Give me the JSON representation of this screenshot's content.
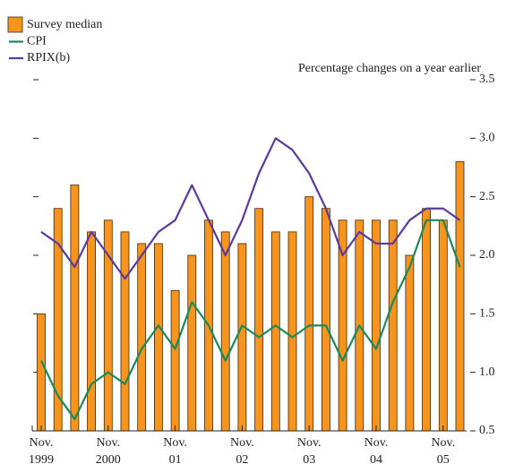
{
  "chart_data": {
    "type": "bar_line",
    "annotation": "Percentage changes on a year earlier",
    "categories": [
      [
        "Nov.",
        "1999"
      ],
      null,
      null,
      null,
      [
        "Nov.",
        "2000"
      ],
      null,
      null,
      null,
      [
        "Nov.",
        "01"
      ],
      null,
      null,
      null,
      [
        "Nov.",
        "02"
      ],
      null,
      null,
      null,
      [
        "Nov.",
        "03"
      ],
      null,
      null,
      null,
      [
        "Nov.",
        "04"
      ],
      null,
      null,
      null,
      [
        "Nov.",
        "05"
      ],
      null
    ],
    "series": [
      {
        "name": "Survey median",
        "kind": "bar",
        "color": "#f7941d",
        "values": [
          1.5,
          2.4,
          2.6,
          2.2,
          2.3,
          2.2,
          2.1,
          2.1,
          1.7,
          2.0,
          2.3,
          2.2,
          2.1,
          2.4,
          2.2,
          2.2,
          2.5,
          2.4,
          2.3,
          2.3,
          2.3,
          2.3,
          2.0,
          2.4,
          2.3,
          2.8
        ]
      },
      {
        "name": "CPI",
        "kind": "line",
        "color": "#1a8a5a",
        "values": [
          1.1,
          0.8,
          0.6,
          0.9,
          1.0,
          0.9,
          1.2,
          1.4,
          1.2,
          1.6,
          1.4,
          1.1,
          1.4,
          1.3,
          1.4,
          1.3,
          1.4,
          1.4,
          1.1,
          1.4,
          1.2,
          1.6,
          1.9,
          2.3,
          2.3,
          1.9
        ]
      },
      {
        "name": "RPIX(b)",
        "kind": "line",
        "color": "#5b3a9b",
        "values": [
          2.2,
          2.1,
          1.9,
          2.2,
          2.0,
          1.8,
          2.0,
          2.2,
          2.3,
          2.6,
          2.3,
          2.0,
          2.3,
          2.7,
          3.0,
          2.9,
          2.7,
          2.4,
          2.0,
          2.2,
          2.1,
          2.1,
          2.3,
          2.4,
          2.4,
          2.3
        ]
      }
    ],
    "ylim": [
      0.5,
      3.5
    ],
    "yticks": [
      0.5,
      {
        "value": 1.0,
        "label": "1.0"
      },
      1.5,
      {
        "value": 2.0,
        "label": "2.0"
      },
      2.5,
      {
        "value": 3.0,
        "label": "3.0"
      },
      3.5
    ]
  }
}
